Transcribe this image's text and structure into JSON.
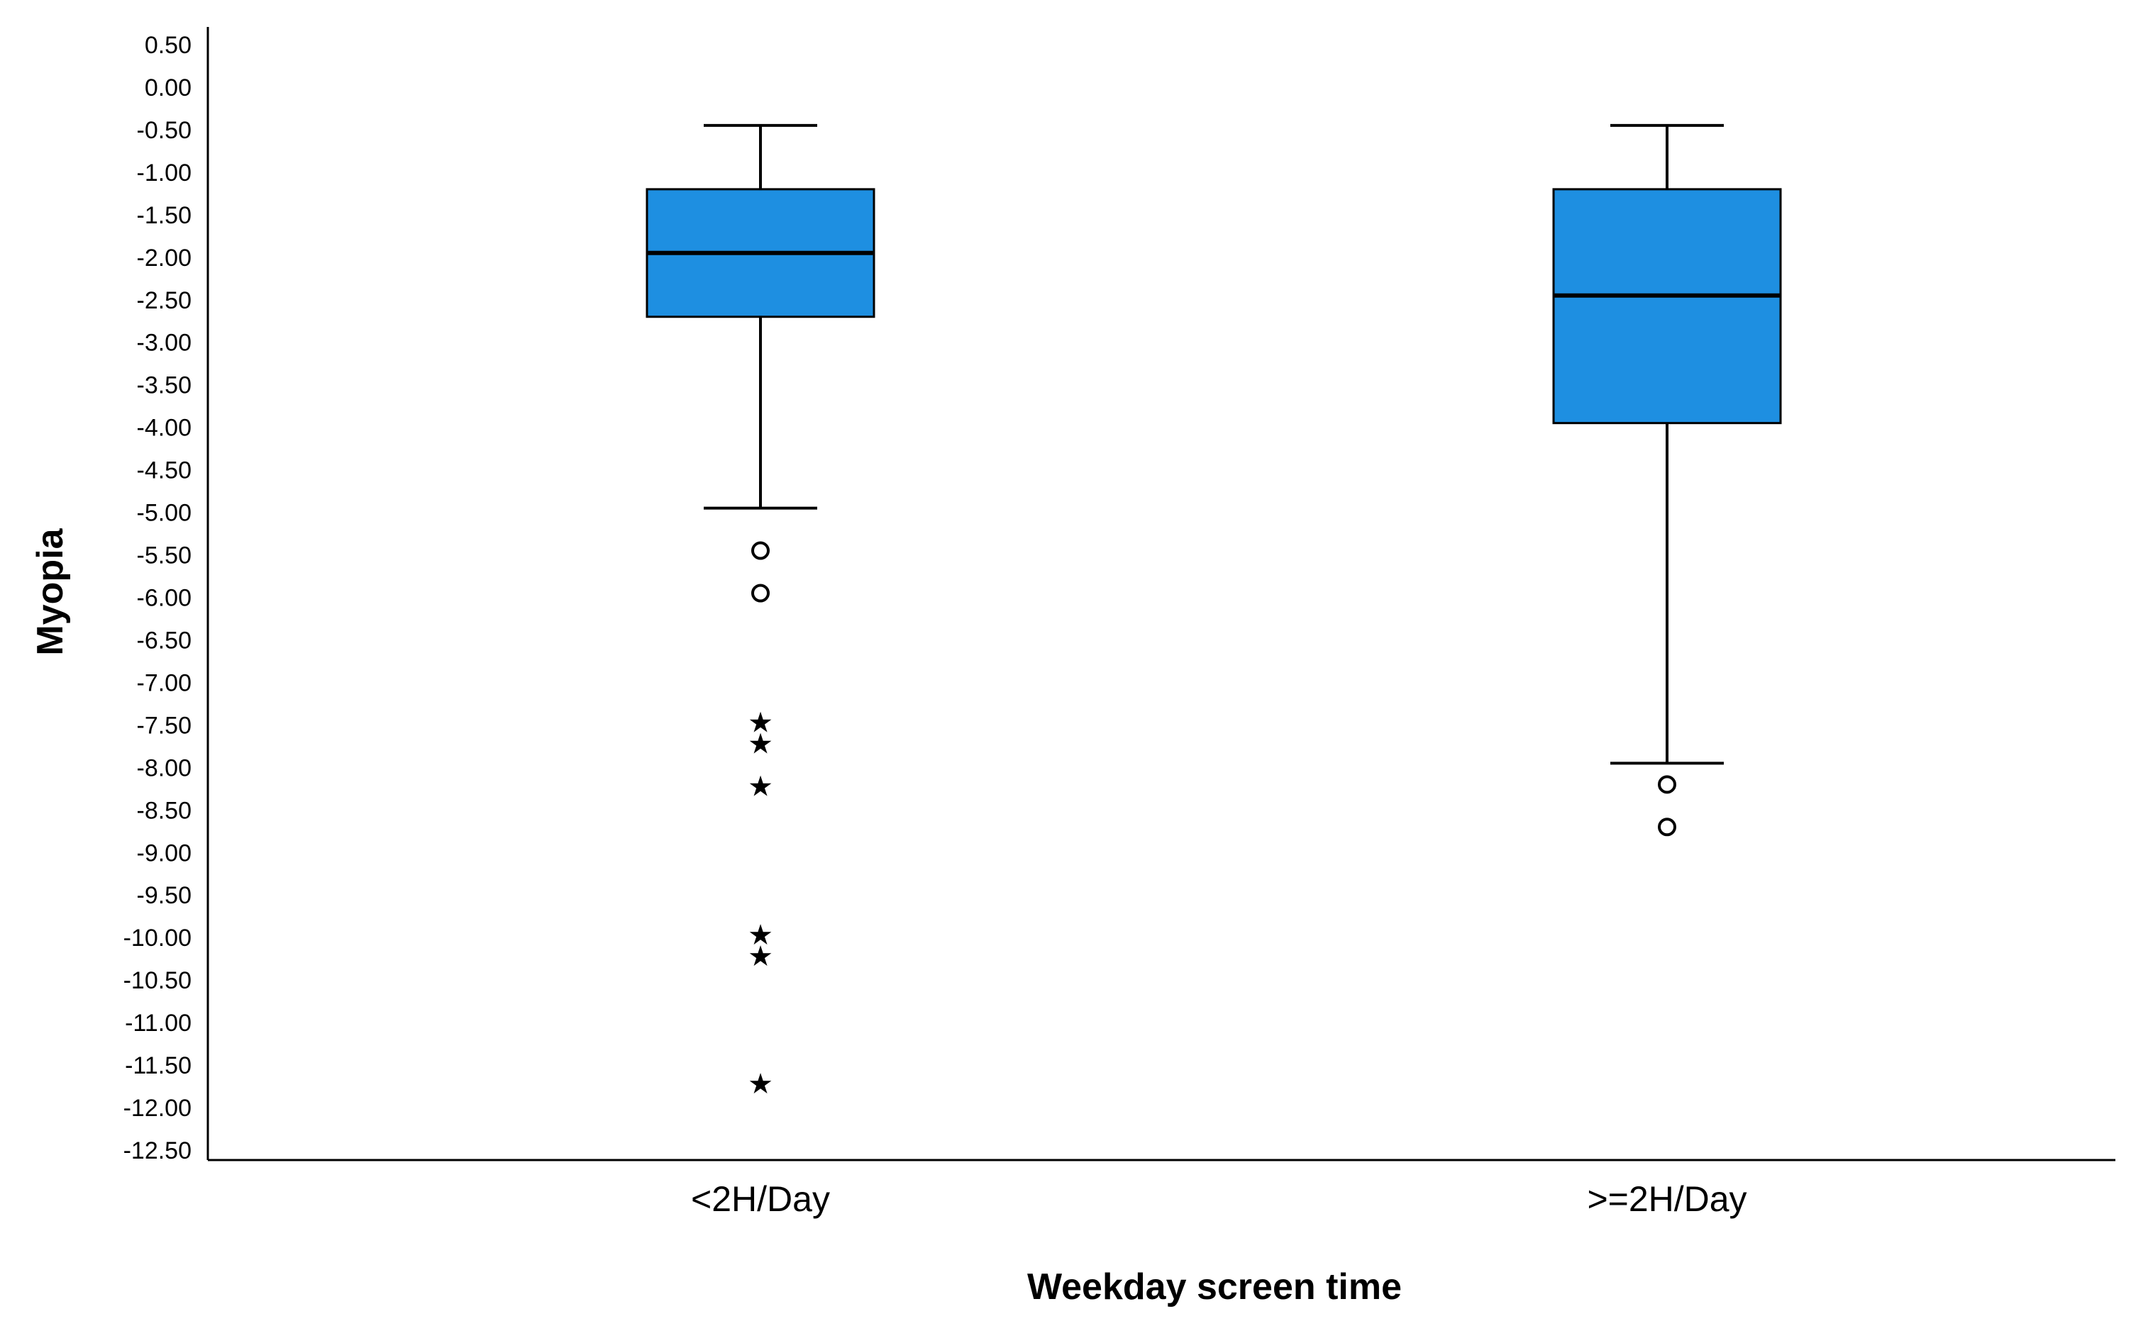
{
  "chart_data": {
    "type": "boxplot",
    "xlabel": "Weekday screen time",
    "ylabel": "Myopia",
    "ylim": [
      -12.5,
      0.5
    ],
    "y_ticks": [
      "0.50",
      "0.00",
      "-0.50",
      "-1.00",
      "-1.50",
      "-2.00",
      "-2.50",
      "-3.00",
      "-3.50",
      "-4.00",
      "-4.50",
      "-5.00",
      "-5.50",
      "-6.00",
      "-6.50",
      "-7.00",
      "-7.50",
      "-8.00",
      "-8.50",
      "-9.00",
      "-9.50",
      "-10.00",
      "-10.50",
      "-11.00",
      "-11.50",
      "-12.00",
      "-12.50"
    ],
    "y_tick_values": [
      0.5,
      0.0,
      -0.5,
      -1.0,
      -1.5,
      -2.0,
      -2.5,
      -3.0,
      -3.5,
      -4.0,
      -4.5,
      -5.0,
      -5.5,
      -6.0,
      -6.5,
      -7.0,
      -7.5,
      -8.0,
      -8.5,
      -9.0,
      -9.5,
      -10.0,
      -10.5,
      -11.0,
      -11.5,
      -12.0,
      -12.5
    ],
    "categories": [
      "<2H/Day",
      ">=2H/Day"
    ],
    "box_color": "#1E8FE1",
    "boxes": [
      {
        "category": "<2H/Day",
        "whisker_high": -0.45,
        "q3": -1.2,
        "median": -1.95,
        "q1": -2.7,
        "whisker_low": -4.95,
        "outliers": [
          -5.45,
          -5.95
        ],
        "extremes": [
          -7.45,
          -7.7,
          -8.2,
          -9.95,
          -10.2,
          -11.7
        ]
      },
      {
        "category": ">=2H/Day",
        "whisker_high": -0.45,
        "q3": -1.2,
        "median": -2.45,
        "q1": -3.95,
        "whisker_low": -7.95,
        "outliers": [
          -8.2,
          -8.7
        ],
        "extremes": []
      }
    ]
  }
}
